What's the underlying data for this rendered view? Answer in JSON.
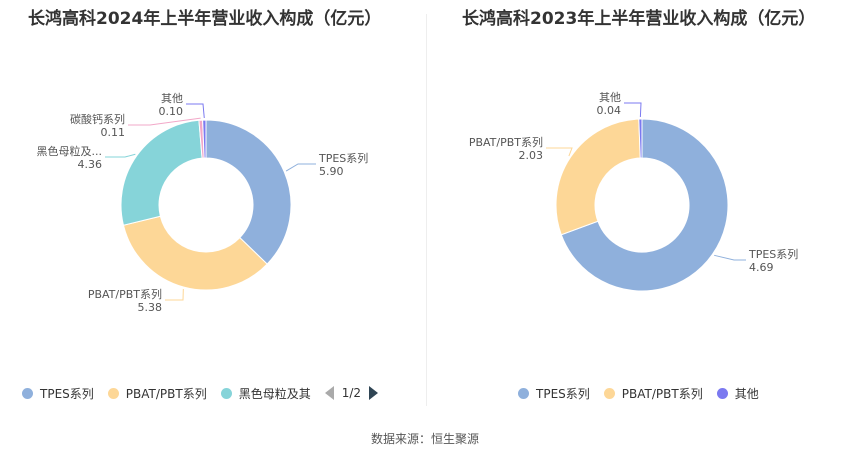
{
  "footer": "数据来源：恒生聚源",
  "chart_data": [
    {
      "type": "pie",
      "title": "长鸿高科2024年上半年营业收入构成（亿元）",
      "slices": [
        {
          "name": "TPES系列",
          "value": 5.9,
          "label": "5.90",
          "display_name": "TPES系列",
          "color": "#8fb0dc"
        },
        {
          "name": "PBAT/PBT系列",
          "value": 5.38,
          "label": "5.38",
          "display_name": "PBAT/PBT系列",
          "color": "#fdd797"
        },
        {
          "name": "黑色母粒及其他",
          "value": 4.36,
          "label": "4.36",
          "display_name": "黑色母粒及...",
          "color": "#86d4d9"
        },
        {
          "name": "碳酸钙系列",
          "value": 0.11,
          "label": "0.11",
          "display_name": "碳酸钙系列",
          "color": "#f2a8c8"
        },
        {
          "name": "其他",
          "value": 0.1,
          "label": "0.10",
          "display_name": "其他",
          "color": "#7b79f0"
        }
      ],
      "legend": {
        "position": "bottom",
        "items": [
          "TPES系列",
          "PBAT/PBT系列",
          "黑色母粒及其"
        ],
        "page": "1/2"
      }
    },
    {
      "type": "pie",
      "title": "长鸿高科2023年上半年营业收入构成（亿元）",
      "slices": [
        {
          "name": "TPES系列",
          "value": 4.69,
          "label": "4.69",
          "display_name": "TPES系列",
          "color": "#8fb0dc"
        },
        {
          "name": "PBAT/PBT系列",
          "value": 2.03,
          "label": "2.03",
          "display_name": "PBAT/PBT系列",
          "color": "#fdd797"
        },
        {
          "name": "其他",
          "value": 0.04,
          "label": "0.04",
          "display_name": "其他",
          "color": "#7b79f0"
        }
      ],
      "legend": {
        "position": "bottom",
        "items": [
          "TPES系列",
          "PBAT/PBT系列",
          "其他"
        ]
      }
    }
  ]
}
